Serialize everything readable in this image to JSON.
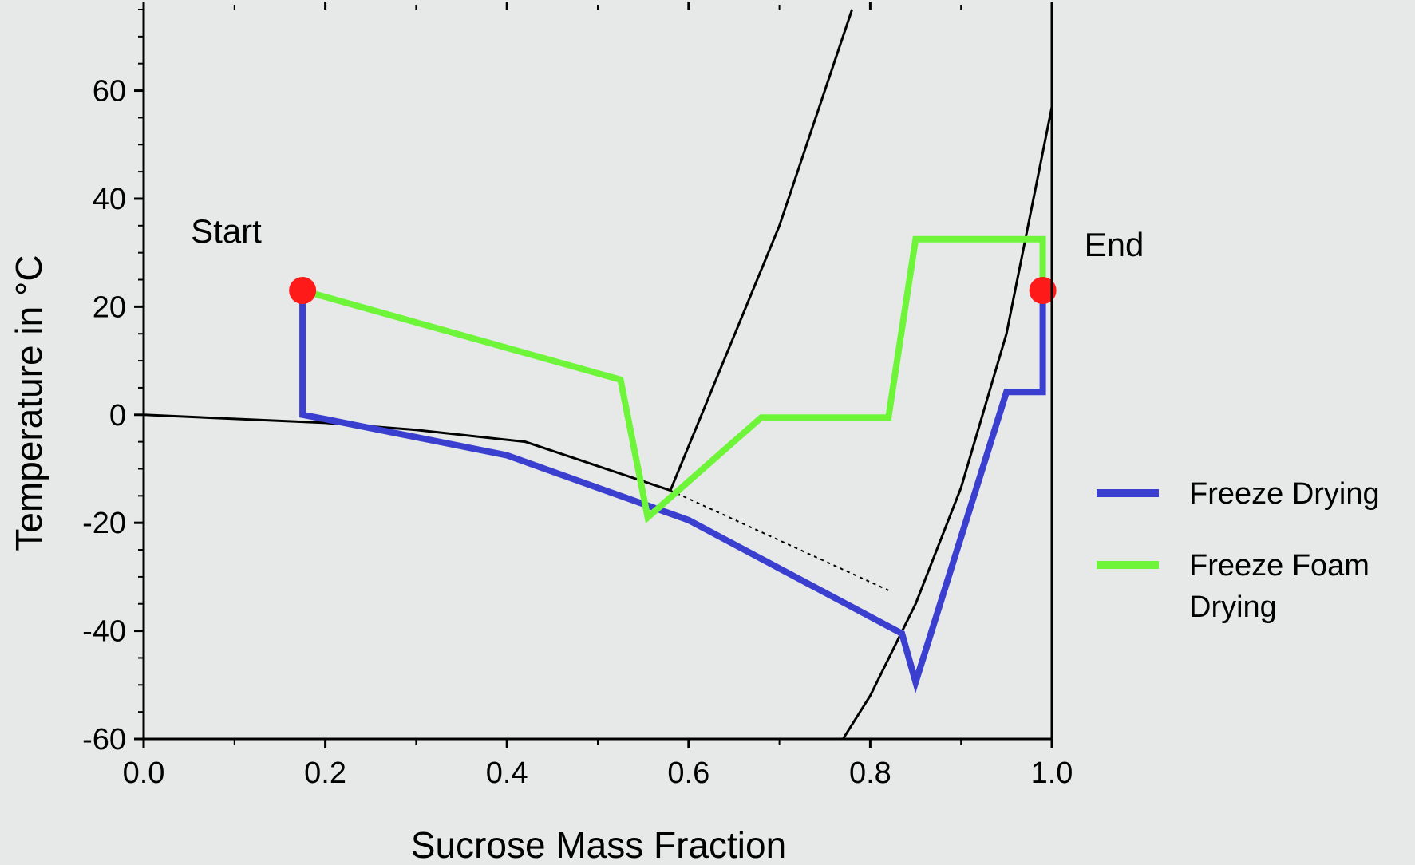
{
  "chart_data": {
    "type": "line",
    "title": "",
    "xlabel": "Sucrose Mass Fraction",
    "ylabel": "Temperature in °C",
    "xlim": [
      0.0,
      1.0
    ],
    "ylim": [
      -60,
      75
    ],
    "x_ticks": [
      "0.0",
      "0.2",
      "0.4",
      "0.6",
      "0.8",
      "1.0"
    ],
    "x_tick_values": [
      0.0,
      0.2,
      0.4,
      0.6,
      0.8,
      1.0
    ],
    "y_ticks": [
      "-60",
      "-40",
      "-20",
      "0",
      "20",
      "40",
      "60"
    ],
    "y_tick_values": [
      -60,
      -40,
      -20,
      0,
      20,
      40,
      60
    ],
    "grid": false,
    "legend_position": "right",
    "colors": {
      "background": "#e7e9e8",
      "axis": "#000000",
      "freeze_drying": "#3b3fcf",
      "freeze_foam_drying": "#6ef53a",
      "marker": "#ff1a1a",
      "phase_curve": "#000000"
    },
    "series": [
      {
        "name": "Freeze Drying",
        "color": "#3b3fcf",
        "points": [
          [
            0.175,
            23
          ],
          [
            0.175,
            0
          ],
          [
            0.2,
            -0.8
          ],
          [
            0.4,
            -7.5
          ],
          [
            0.6,
            -19.5
          ],
          [
            0.835,
            -40.5
          ],
          [
            0.85,
            -49.5
          ],
          [
            0.95,
            4.2
          ],
          [
            0.99,
            4.2
          ],
          [
            0.99,
            23
          ]
        ]
      },
      {
        "name": "Freeze Foam Drying",
        "color": "#6ef53a",
        "points": [
          [
            0.175,
            23
          ],
          [
            0.525,
            6.5
          ],
          [
            0.555,
            -19
          ],
          [
            0.68,
            -0.5
          ],
          [
            0.82,
            -0.5
          ],
          [
            0.85,
            32.5
          ],
          [
            0.99,
            32.5
          ],
          [
            0.99,
            23
          ]
        ]
      }
    ],
    "phase_curves": [
      {
        "style": "solid",
        "points": [
          [
            0.0,
            0.0
          ],
          [
            0.2,
            -1.5
          ],
          [
            0.3,
            -2.8
          ],
          [
            0.42,
            -5
          ],
          [
            0.5,
            -9.5
          ],
          [
            0.58,
            -14
          ]
        ]
      },
      {
        "style": "solid",
        "points": [
          [
            0.58,
            -14
          ],
          [
            0.7,
            35
          ],
          [
            0.78,
            75
          ]
        ]
      },
      {
        "style": "dotted",
        "points": [
          [
            0.58,
            -14
          ],
          [
            0.82,
            -32.5
          ]
        ]
      },
      {
        "style": "solid",
        "points": [
          [
            0.77,
            -60
          ],
          [
            0.8,
            -52
          ],
          [
            0.85,
            -35
          ],
          [
            0.9,
            -13.5
          ],
          [
            0.95,
            15
          ],
          [
            1.0,
            57
          ]
        ]
      }
    ],
    "markers": [
      {
        "label": "Start",
        "point": [
          0.175,
          23
        ]
      },
      {
        "label": "End",
        "point": [
          0.99,
          23
        ]
      }
    ],
    "annotations": [
      "Start",
      "End"
    ]
  },
  "legend": {
    "entries": [
      {
        "label_lines": [
          "Freeze Drying"
        ],
        "color": "#3b3fcf"
      },
      {
        "label_lines": [
          "Freeze Foam",
          "Drying"
        ],
        "color": "#6ef53a"
      }
    ]
  }
}
